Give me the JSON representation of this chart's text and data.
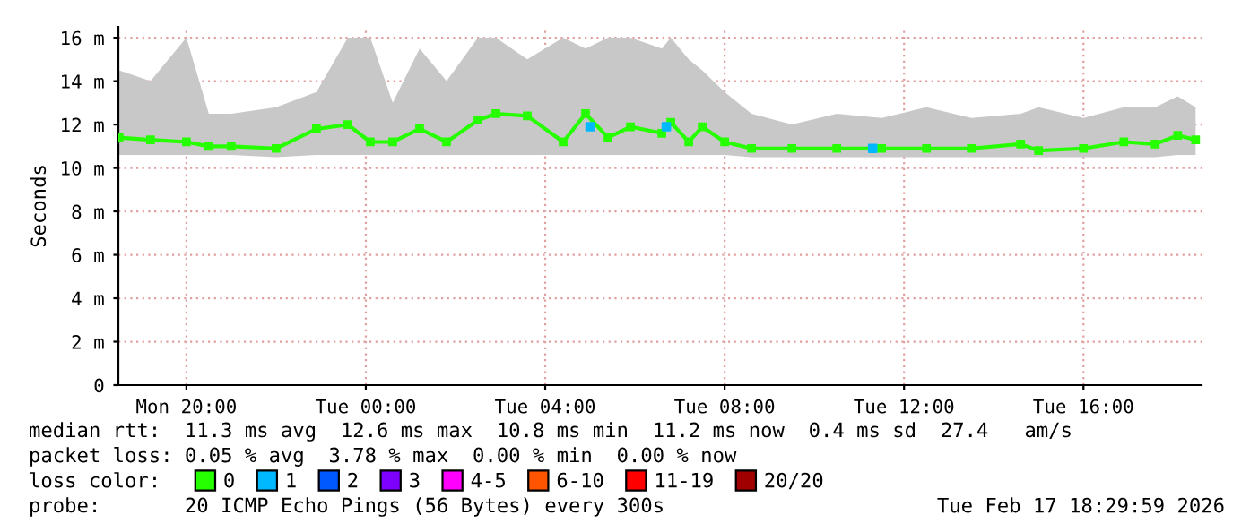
{
  "chart_data": {
    "type": "line",
    "ylabel": "Seconds",
    "xlim": [
      "2026-02-16T18:29",
      "2026-02-17T18:38"
    ],
    "ylim": [
      0,
      16.5
    ],
    "xticks": [
      {
        "value": "2026-02-16T20:00",
        "label": "Mon 20:00"
      },
      {
        "value": "2026-02-17T00:00",
        "label": "Tue 00:00"
      },
      {
        "value": "2026-02-17T04:00",
        "label": "Tue 04:00"
      },
      {
        "value": "2026-02-17T08:00",
        "label": "Tue 08:00"
      },
      {
        "value": "2026-02-17T12:00",
        "label": "Tue 12:00"
      },
      {
        "value": "2026-02-17T16:00",
        "label": "Tue 16:00"
      }
    ],
    "yticks": [
      0,
      {
        "value": 2,
        "label": "2 m"
      },
      {
        "value": 4,
        "label": "4 m"
      },
      {
        "value": 6,
        "label": "6 m"
      },
      {
        "value": 8,
        "label": "8 m"
      },
      {
        "value": 10,
        "label": "10 m"
      },
      {
        "value": 12,
        "label": "12 m"
      },
      {
        "value": 14,
        "label": "14 m"
      },
      {
        "value": 16,
        "label": "16 m"
      }
    ],
    "grid": true,
    "legend": "bottom",
    "legend_title": "loss color:",
    "marker": "square",
    "series": [
      {
        "name": "0",
        "color": "#26ff00",
        "x": [
          "2026-02-16T18:30",
          "2026-02-16T19:12",
          "2026-02-16T20:00",
          "2026-02-16T20:30",
          "2026-02-16T21:00",
          "2026-02-16T22:00",
          "2026-02-16T22:54",
          "2026-02-16T23:36",
          "2026-02-17T00:06",
          "2026-02-17T00:36",
          "2026-02-17T01:12",
          "2026-02-17T01:48",
          "2026-02-17T02:30",
          "2026-02-17T02:54",
          "2026-02-17T03:36",
          "2026-02-17T04:24",
          "2026-02-17T04:54",
          "2026-02-17T05:24",
          "2026-02-17T05:54",
          "2026-02-17T06:36",
          "2026-02-17T06:48",
          "2026-02-17T07:12",
          "2026-02-17T07:30",
          "2026-02-17T08:00",
          "2026-02-17T08:36",
          "2026-02-17T09:30",
          "2026-02-17T10:30",
          "2026-02-17T11:30",
          "2026-02-17T12:30",
          "2026-02-17T13:30",
          "2026-02-17T14:36",
          "2026-02-17T15:00",
          "2026-02-17T16:00",
          "2026-02-17T16:54",
          "2026-02-17T17:36",
          "2026-02-17T18:06",
          "2026-02-17T18:30"
        ],
        "values": [
          11.4,
          11.3,
          11.2,
          11.0,
          11.0,
          10.9,
          11.8,
          12.0,
          11.2,
          11.2,
          11.8,
          11.2,
          12.2,
          12.5,
          12.4,
          11.2,
          12.5,
          11.4,
          11.9,
          11.6,
          12.1,
          11.2,
          11.9,
          11.2,
          10.9,
          10.9,
          10.9,
          10.9,
          10.9,
          10.9,
          11.1,
          10.8,
          10.9,
          11.2,
          11.1,
          11.5,
          11.3
        ],
        "lower": [
          10.6,
          10.6,
          10.6,
          10.6,
          10.6,
          10.5,
          10.6,
          10.6,
          10.6,
          10.6,
          10.6,
          10.6,
          10.6,
          10.6,
          10.6,
          10.6,
          10.6,
          10.6,
          10.6,
          10.6,
          10.6,
          10.6,
          10.6,
          10.6,
          10.5,
          10.5,
          10.5,
          10.5,
          10.5,
          10.5,
          10.5,
          10.5,
          10.5,
          10.5,
          10.5,
          10.6,
          10.6
        ],
        "upper": [
          14.5,
          14.0,
          16.0,
          12.5,
          12.5,
          12.8,
          13.5,
          16.0,
          16.0,
          13.0,
          15.5,
          14.0,
          16.0,
          16.0,
          15.0,
          16.0,
          15.5,
          16.0,
          16.0,
          15.5,
          16.0,
          15.0,
          14.5,
          13.5,
          12.5,
          12.0,
          12.5,
          12.3,
          12.8,
          12.3,
          12.5,
          12.8,
          12.3,
          12.8,
          12.8,
          13.3,
          12.8
        ]
      },
      {
        "name": "1",
        "color": "#00b8ff",
        "type": "scatter",
        "x": [
          "2026-02-17T05:00",
          "2026-02-17T06:42",
          "2026-02-17T11:18"
        ],
        "values": [
          11.9,
          11.9,
          10.9
        ]
      },
      {
        "name": "2",
        "color": "#0059ff",
        "type": "scatter"
      },
      {
        "name": "3",
        "color": "#7e00ff",
        "type": "scatter"
      },
      {
        "name": "4-5",
        "color": "#ff00ff",
        "type": "scatter"
      },
      {
        "name": "6-10",
        "color": "#ff5500",
        "type": "scatter"
      },
      {
        "name": "11-19",
        "color": "#ff0000",
        "type": "scatter"
      },
      {
        "name": "20/20",
        "color": "#a10000",
        "type": "scatter"
      }
    ],
    "annotations": [
      "median rtt:  11.3 ms avg  12.6 ms max  10.8 ms min  11.2 ms now  0.4 ms sd  27.4   am/s",
      "packet loss: 0.05 % avg  3.78 % max  0.00 % min  0.00 % now",
      "probe:       20 ICMP Echo Pings (56 Bytes) every 300s",
      "Tue Feb 17 18:29:59 2026"
    ]
  }
}
